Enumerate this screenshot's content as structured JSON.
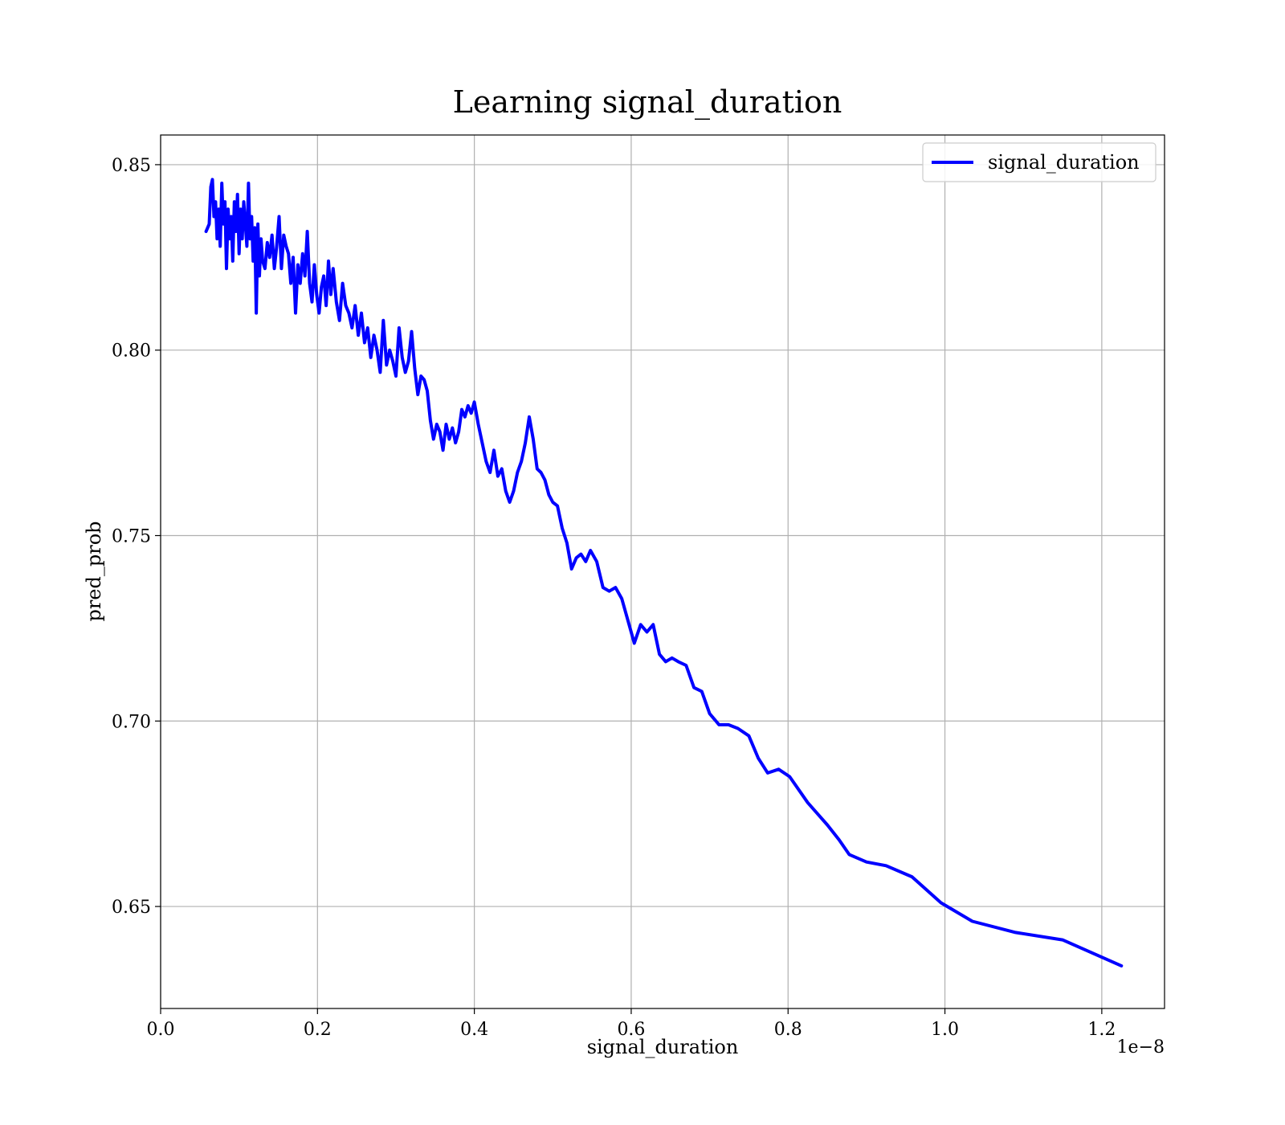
{
  "chart_data": {
    "type": "line",
    "title": "Learning signal_duration",
    "xlabel": "signal_duration",
    "ylabel": "pred_prob",
    "x_offset_text": "1e−8",
    "xlim": [
      0.0,
      1.28
    ],
    "ylim": [
      0.6225,
      0.858
    ],
    "x_ticks": [
      0.0,
      0.2,
      0.4,
      0.6,
      0.8,
      1.0,
      1.2
    ],
    "x_tick_labels": [
      "0.0",
      "0.2",
      "0.4",
      "0.6",
      "0.8",
      "1.0",
      "1.2"
    ],
    "y_ticks": [
      0.65,
      0.7,
      0.75,
      0.8,
      0.85
    ],
    "y_tick_labels": [
      "0.65",
      "0.70",
      "0.75",
      "0.80",
      "0.85"
    ],
    "grid": true,
    "legend_position": "top-right",
    "series": [
      {
        "name": "signal_duration",
        "color": "#0000ff",
        "x": [
          0.058,
          0.062,
          0.064,
          0.066,
          0.068,
          0.07,
          0.072,
          0.074,
          0.076,
          0.078,
          0.08,
          0.082,
          0.084,
          0.086,
          0.088,
          0.09,
          0.092,
          0.094,
          0.096,
          0.098,
          0.1,
          0.102,
          0.104,
          0.106,
          0.108,
          0.11,
          0.112,
          0.114,
          0.116,
          0.118,
          0.12,
          0.122,
          0.124,
          0.126,
          0.128,
          0.13,
          0.133,
          0.136,
          0.139,
          0.142,
          0.145,
          0.148,
          0.151,
          0.154,
          0.157,
          0.16,
          0.163,
          0.166,
          0.169,
          0.172,
          0.175,
          0.178,
          0.181,
          0.184,
          0.187,
          0.19,
          0.193,
          0.196,
          0.199,
          0.202,
          0.205,
          0.208,
          0.211,
          0.214,
          0.217,
          0.22,
          0.224,
          0.228,
          0.232,
          0.236,
          0.24,
          0.244,
          0.248,
          0.252,
          0.256,
          0.26,
          0.264,
          0.268,
          0.272,
          0.276,
          0.28,
          0.284,
          0.288,
          0.292,
          0.296,
          0.3,
          0.304,
          0.308,
          0.312,
          0.316,
          0.32,
          0.324,
          0.328,
          0.332,
          0.336,
          0.34,
          0.344,
          0.348,
          0.352,
          0.356,
          0.36,
          0.364,
          0.368,
          0.372,
          0.376,
          0.38,
          0.384,
          0.388,
          0.392,
          0.396,
          0.4,
          0.405,
          0.41,
          0.415,
          0.42,
          0.425,
          0.43,
          0.435,
          0.44,
          0.445,
          0.45,
          0.455,
          0.46,
          0.465,
          0.47,
          0.475,
          0.48,
          0.485,
          0.49,
          0.495,
          0.5,
          0.506,
          0.512,
          0.518,
          0.524,
          0.53,
          0.536,
          0.542,
          0.548,
          0.556,
          0.564,
          0.572,
          0.58,
          0.588,
          0.596,
          0.604,
          0.612,
          0.62,
          0.628,
          0.636,
          0.644,
          0.652,
          0.66,
          0.67,
          0.68,
          0.69,
          0.7,
          0.712,
          0.724,
          0.736,
          0.75,
          0.762,
          0.774,
          0.788,
          0.802,
          0.825,
          0.85,
          0.865,
          0.878,
          0.9,
          0.925,
          0.958,
          0.995,
          1.035,
          1.09,
          1.15,
          1.225
        ],
        "values": [
          0.832,
          0.834,
          0.844,
          0.846,
          0.836,
          0.84,
          0.83,
          0.838,
          0.828,
          0.845,
          0.834,
          0.84,
          0.822,
          0.838,
          0.83,
          0.836,
          0.824,
          0.84,
          0.832,
          0.842,
          0.826,
          0.838,
          0.83,
          0.84,
          0.834,
          0.828,
          0.845,
          0.83,
          0.836,
          0.824,
          0.833,
          0.81,
          0.834,
          0.82,
          0.83,
          0.824,
          0.822,
          0.829,
          0.825,
          0.831,
          0.822,
          0.828,
          0.836,
          0.822,
          0.831,
          0.828,
          0.826,
          0.818,
          0.825,
          0.81,
          0.823,
          0.818,
          0.826,
          0.82,
          0.832,
          0.818,
          0.813,
          0.823,
          0.815,
          0.81,
          0.817,
          0.82,
          0.812,
          0.824,
          0.815,
          0.822,
          0.813,
          0.808,
          0.818,
          0.812,
          0.81,
          0.806,
          0.812,
          0.804,
          0.81,
          0.802,
          0.806,
          0.798,
          0.804,
          0.8,
          0.794,
          0.808,
          0.796,
          0.8,
          0.797,
          0.793,
          0.806,
          0.798,
          0.794,
          0.797,
          0.805,
          0.795,
          0.788,
          0.793,
          0.792,
          0.789,
          0.781,
          0.776,
          0.78,
          0.778,
          0.773,
          0.78,
          0.776,
          0.779,
          0.775,
          0.778,
          0.784,
          0.782,
          0.785,
          0.783,
          0.786,
          0.78,
          0.775,
          0.77,
          0.767,
          0.773,
          0.766,
          0.768,
          0.762,
          0.759,
          0.762,
          0.767,
          0.77,
          0.775,
          0.782,
          0.776,
          0.768,
          0.767,
          0.765,
          0.761,
          0.759,
          0.758,
          0.752,
          0.748,
          0.741,
          0.744,
          0.745,
          0.743,
          0.746,
          0.743,
          0.736,
          0.735,
          0.736,
          0.733,
          0.727,
          0.721,
          0.726,
          0.724,
          0.726,
          0.718,
          0.716,
          0.717,
          0.716,
          0.715,
          0.709,
          0.708,
          0.702,
          0.699,
          0.699,
          0.698,
          0.696,
          0.69,
          0.686,
          0.687,
          0.685,
          0.678,
          0.672,
          0.668,
          0.664,
          0.662,
          0.661,
          0.658,
          0.651,
          0.646,
          0.643,
          0.641,
          0.634
        ]
      }
    ]
  }
}
